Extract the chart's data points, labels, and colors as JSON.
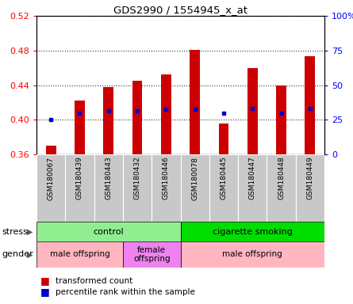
{
  "title": "GDS2990 / 1554945_x_at",
  "samples": [
    "GSM180067",
    "GSM180439",
    "GSM180443",
    "GSM180432",
    "GSM180446",
    "GSM180078",
    "GSM180445",
    "GSM180447",
    "GSM180448",
    "GSM180449"
  ],
  "red_values": [
    0.37,
    0.422,
    0.438,
    0.445,
    0.452,
    0.481,
    0.396,
    0.46,
    0.44,
    0.473
  ],
  "blue_values": [
    0.4,
    0.408,
    0.41,
    0.41,
    0.412,
    0.412,
    0.408,
    0.413,
    0.408,
    0.413
  ],
  "ylim": [
    0.36,
    0.52
  ],
  "yticks_left": [
    0.36,
    0.4,
    0.44,
    0.48,
    0.52
  ],
  "yticks_right": [
    0,
    25,
    50,
    75,
    100
  ],
  "right_ylabels": [
    "0",
    "25",
    "50",
    "75",
    "100%"
  ],
  "stress_groups": [
    {
      "label": "control",
      "start": 0,
      "end": 5,
      "color": "#90EE90"
    },
    {
      "label": "cigarette smoking",
      "start": 5,
      "end": 10,
      "color": "#00DD00"
    }
  ],
  "gender_groups": [
    {
      "label": "male offspring",
      "start": 0,
      "end": 3,
      "color": "#FFB6C1"
    },
    {
      "label": "female\noffspring",
      "start": 3,
      "end": 5,
      "color": "#EE82EE"
    },
    {
      "label": "male offspring",
      "start": 5,
      "end": 10,
      "color": "#FFB6C1"
    }
  ],
  "bar_color": "#CC0000",
  "dot_color": "#0000CC",
  "bg_color": "#F8F8F8",
  "chart_bg": "#FFFFFF",
  "bar_width": 0.35
}
